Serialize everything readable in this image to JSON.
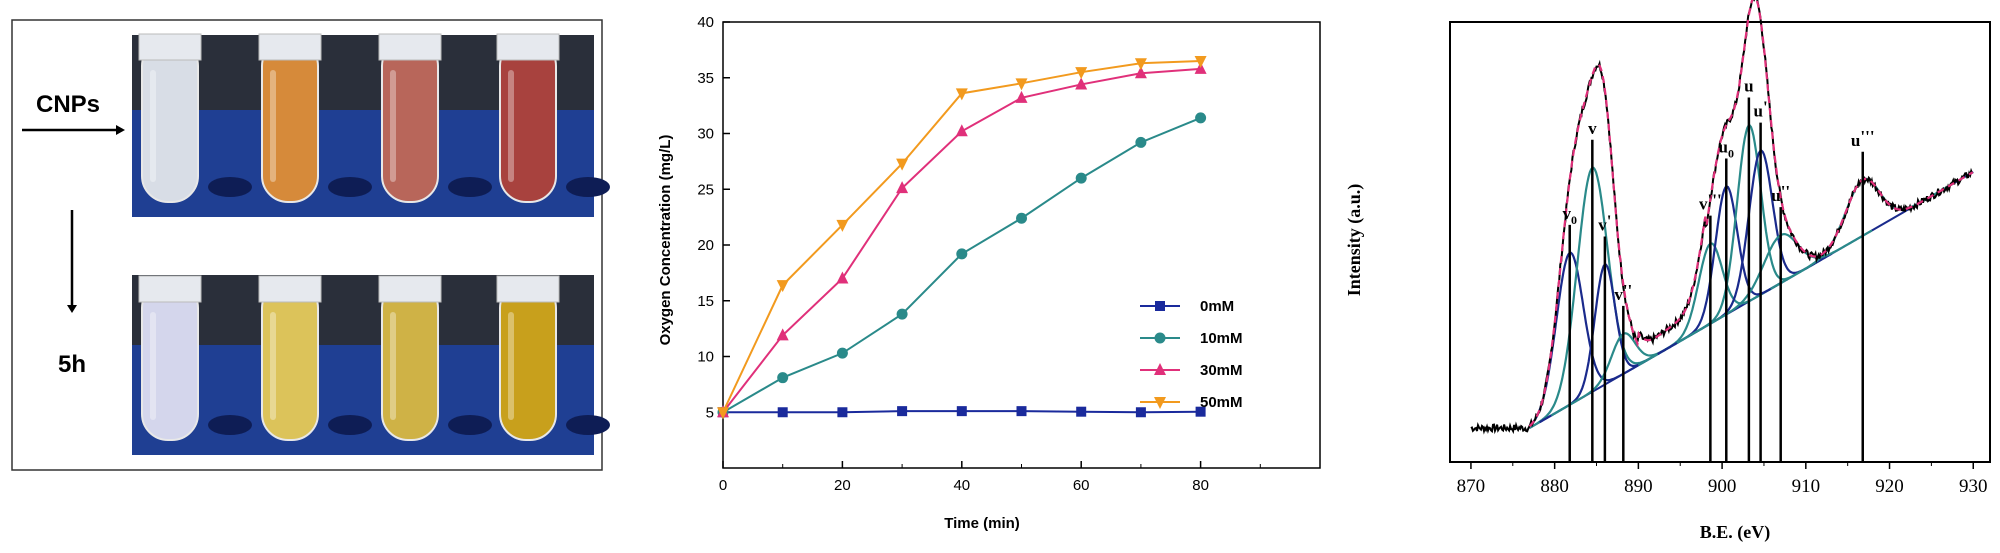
{
  "panel_a": {
    "label_cnps": "CNPs",
    "label_time": "5h",
    "tube_colors_before": [
      "#d8dde6",
      "#d68a3a",
      "#b8665a",
      "#a8423e"
    ],
    "tube_colors_after": [
      "#d4d6ec",
      "#dcc35a",
      "#cfb246",
      "#c8a01c"
    ],
    "rack_color": "#1f3f93"
  },
  "chart_data": [
    {
      "type": "line",
      "title": "",
      "xlabel": "Time (min)",
      "ylabel": "Oxygen Concentration (mg/L)",
      "xlim": [
        0,
        100
      ],
      "ylim": [
        0,
        40
      ],
      "xticks": [
        0,
        20,
        40,
        60,
        80
      ],
      "yticks": [
        5,
        10,
        15,
        20,
        25,
        30,
        35,
        40
      ],
      "legend_position": "right-middle",
      "series": [
        {
          "name": "0mM",
          "color": "#1a2a9c",
          "marker": "square",
          "x": [
            0,
            10,
            20,
            30,
            40,
            50,
            60,
            70,
            80
          ],
          "values": [
            5,
            5,
            5,
            5.1,
            5.1,
            5.1,
            5.05,
            5,
            5.05
          ]
        },
        {
          "name": "10mM",
          "color": "#2a8a8a",
          "marker": "circle",
          "x": [
            0,
            10,
            20,
            30,
            40,
            50,
            60,
            70,
            80
          ],
          "values": [
            5,
            8.1,
            10.3,
            13.8,
            19.2,
            22.4,
            26,
            29.2,
            31.4
          ]
        },
        {
          "name": "30mM",
          "color": "#e0307a",
          "marker": "triangle-up",
          "x": [
            0,
            10,
            20,
            30,
            40,
            50,
            60,
            70,
            80
          ],
          "values": [
            5,
            11.9,
            17,
            25.1,
            30.2,
            33.2,
            34.4,
            35.4,
            35.8
          ]
        },
        {
          "name": "50mM",
          "color": "#f29a1e",
          "marker": "triangle-down",
          "x": [
            0,
            10,
            20,
            30,
            40,
            50,
            60,
            70,
            80
          ],
          "values": [
            5,
            16.4,
            21.8,
            27.3,
            33.6,
            34.5,
            35.5,
            36.3,
            36.5
          ]
        }
      ]
    },
    {
      "type": "line",
      "title": "",
      "xlabel": "B.E. (eV)",
      "ylabel": "Intensity (a.u.)",
      "xlim": [
        870,
        930
      ],
      "xticks": [
        870,
        880,
        890,
        900,
        910,
        920,
        930
      ],
      "background_line": {
        "x": [
          877,
          930
        ],
        "y": [
          0.06,
          0.7
        ]
      },
      "peaks": [
        {
          "label": "v",
          "sub": "0",
          "prime": "",
          "center": 881.8,
          "height": 0.38,
          "width": 1.6,
          "color": "#1a2a8c"
        },
        {
          "label": "v",
          "sub": "",
          "prime": "",
          "center": 884.5,
          "height": 0.56,
          "width": 1.8,
          "color": "#2a8a8a"
        },
        {
          "label": "v",
          "sub": "",
          "prime": "'",
          "center": 886.0,
          "height": 0.3,
          "width": 1.2,
          "color": "#1a2a8c"
        },
        {
          "label": "v",
          "sub": "",
          "prime": "''",
          "center": 888.2,
          "height": 0.1,
          "width": 1.4,
          "color": "#2a8a8a"
        },
        {
          "label": "v",
          "sub": "",
          "prime": "'''",
          "center": 898.6,
          "height": 0.2,
          "width": 1.4,
          "color": "#2a8a8a"
        },
        {
          "label": "u",
          "sub": "0",
          "prime": "",
          "center": 900.5,
          "height": 0.32,
          "width": 1.3,
          "color": "#1a2a8c"
        },
        {
          "label": "u",
          "sub": "",
          "prime": "",
          "center": 903.2,
          "height": 0.44,
          "width": 1.4,
          "color": "#2a8a8a"
        },
        {
          "label": "u",
          "sub": "",
          "prime": "'",
          "center": 904.6,
          "height": 0.36,
          "width": 1.4,
          "color": "#1a2a8c"
        },
        {
          "label": "u",
          "sub": "",
          "prime": "''",
          "center": 907.0,
          "height": 0.12,
          "width": 2.0,
          "color": "#2a8a8a"
        },
        {
          "label": "u",
          "sub": "",
          "prime": "'''",
          "center": 916.8,
          "height": 0.14,
          "width": 2.0,
          "color": "#2a8a8a"
        }
      ],
      "envelope_color": "#e0307a",
      "raw_color": "#000000"
    }
  ]
}
